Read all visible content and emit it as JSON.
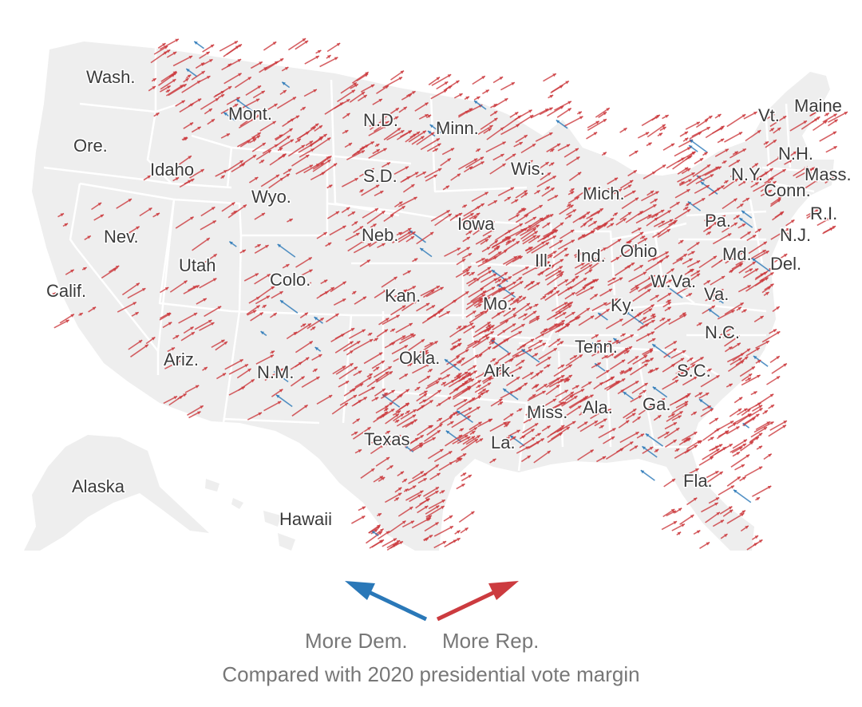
{
  "colors": {
    "land": "#eeeeee",
    "border": "#ffffff",
    "rep": "#cc3b3f",
    "dem": "#2a78b8",
    "label": "#3b3b3b",
    "caption": "#777777"
  },
  "states": [
    {
      "id": "wa",
      "label": "Wash."
    },
    {
      "id": "or",
      "label": "Ore."
    },
    {
      "id": "ca",
      "label": "Calif."
    },
    {
      "id": "nv",
      "label": "Nev."
    },
    {
      "id": "id",
      "label": "Idaho"
    },
    {
      "id": "mt",
      "label": "Mont."
    },
    {
      "id": "wy",
      "label": "Wyo."
    },
    {
      "id": "ut",
      "label": "Utah"
    },
    {
      "id": "az",
      "label": "Ariz."
    },
    {
      "id": "co",
      "label": "Colo."
    },
    {
      "id": "nm",
      "label": "N.M."
    },
    {
      "id": "nd",
      "label": "N.D."
    },
    {
      "id": "sd",
      "label": "S.D."
    },
    {
      "id": "ne",
      "label": "Neb."
    },
    {
      "id": "ks",
      "label": "Kan."
    },
    {
      "id": "ok",
      "label": "Okla."
    },
    {
      "id": "tx",
      "label": "Texas"
    },
    {
      "id": "mn",
      "label": "Minn."
    },
    {
      "id": "ia",
      "label": "Iowa"
    },
    {
      "id": "mo",
      "label": "Mo."
    },
    {
      "id": "ar",
      "label": "Ark."
    },
    {
      "id": "la",
      "label": "La."
    },
    {
      "id": "wi",
      "label": "Wis."
    },
    {
      "id": "il",
      "label": "Ill."
    },
    {
      "id": "mi",
      "label": "Mich."
    },
    {
      "id": "in",
      "label": "Ind."
    },
    {
      "id": "oh",
      "label": "Ohio"
    },
    {
      "id": "ky",
      "label": "Ky."
    },
    {
      "id": "tn",
      "label": "Tenn."
    },
    {
      "id": "ms",
      "label": "Miss."
    },
    {
      "id": "al",
      "label": "Ala."
    },
    {
      "id": "ga",
      "label": "Ga."
    },
    {
      "id": "fl",
      "label": "Fla."
    },
    {
      "id": "sc",
      "label": "S.C."
    },
    {
      "id": "nc",
      "label": "N.C."
    },
    {
      "id": "va",
      "label": "Va."
    },
    {
      "id": "wv",
      "label": "W.Va."
    },
    {
      "id": "pa",
      "label": "Pa."
    },
    {
      "id": "md",
      "label": "Md."
    },
    {
      "id": "de",
      "label": "Del."
    },
    {
      "id": "nj",
      "label": "N.J."
    },
    {
      "id": "ny",
      "label": "N.Y."
    },
    {
      "id": "ct",
      "label": "Conn."
    },
    {
      "id": "ri",
      "label": "R.I."
    },
    {
      "id": "ma",
      "label": "Mass."
    },
    {
      "id": "vt",
      "label": "Vt."
    },
    {
      "id": "nh",
      "label": "N.H."
    },
    {
      "id": "me",
      "label": "Maine"
    },
    {
      "id": "ak",
      "label": "Alaska"
    },
    {
      "id": "hi",
      "label": "Hawaii"
    }
  ],
  "legend": {
    "dem_label": "More Dem.",
    "rep_label": "More Rep.",
    "caption": "Compared with 2020 presidential vote margin"
  }
}
